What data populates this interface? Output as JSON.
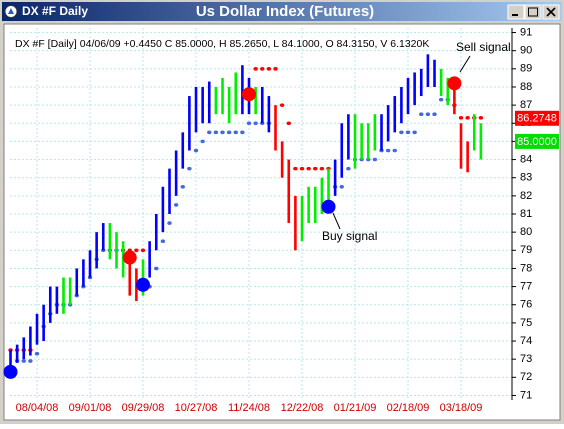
{
  "window_title": "DX #F Daily",
  "chart_data": {
    "type": "ohlc",
    "title": "Us Dollar Index (Futures)",
    "info_line": "DX #F [Daily] 04/06/09 +0.4450 C 85.0000, H 85.2650, L 84.1000, O 84.3150, V 6.1320K",
    "categories": [
      null,
      null,
      null,
      null,
      "08/04/08",
      null,
      null,
      null,
      null,
      null,
      null,
      null,
      "09/01/08",
      null,
      null,
      null,
      null,
      null,
      null,
      null,
      "09/29/08",
      null,
      null,
      null,
      null,
      null,
      null,
      null,
      "10/27/08",
      null,
      null,
      null,
      null,
      null,
      null,
      null,
      "11/24/08",
      null,
      null,
      null,
      null,
      null,
      null,
      null,
      "12/22/08",
      null,
      null,
      null,
      null,
      null,
      null,
      null,
      "01/21/09",
      null,
      null,
      null,
      null,
      null,
      null,
      null,
      "02/18/09",
      null,
      null,
      null,
      null,
      null,
      null,
      null,
      "03/18/09",
      null,
      null,
      null
    ],
    "high": [
      73.5,
      73.8,
      74.2,
      74.8,
      75.5,
      76,
      77,
      77,
      77.5,
      77.5,
      78,
      78.5,
      79,
      80,
      80.5,
      80.5,
      80,
      79.5,
      78.5,
      78,
      78.5,
      79.5,
      81,
      82.5,
      83.5,
      84.5,
      85.5,
      87.5,
      88,
      88,
      88.3,
      88,
      88.5,
      88,
      88.8,
      89.2,
      88.5,
      88,
      88,
      87.5,
      87,
      85,
      84,
      82,
      82,
      82.5,
      82.5,
      83,
      83.5,
      84,
      86,
      86.5,
      86.5,
      86,
      86,
      86.5,
      86.5,
      87,
      87.5,
      88,
      88.5,
      88.8,
      89,
      89.8,
      89.5,
      89,
      88.5,
      88,
      86,
      85,
      86.5,
      86
    ],
    "low": [
      72.3,
      72.8,
      73,
      73.2,
      73.8,
      74,
      75,
      75.5,
      75.5,
      76,
      76.5,
      77,
      77.5,
      78,
      79,
      78.5,
      78,
      77.5,
      76.5,
      76.2,
      76.5,
      77.5,
      79,
      80,
      81,
      82,
      83.5,
      84.5,
      85.5,
      86,
      86,
      86.5,
      86.5,
      86,
      86.5,
      86.5,
      86.5,
      86.5,
      86,
      85.5,
      84.5,
      83,
      80.5,
      79,
      79.5,
      80.5,
      80.5,
      81,
      81.5,
      82,
      83,
      84,
      83.5,
      84,
      84,
      84.5,
      84.5,
      85,
      85.5,
      86,
      86.5,
      87,
      87.5,
      88,
      88,
      87.5,
      87,
      86.5,
      83.5,
      83.3,
      84.5,
      84
    ],
    "bar_colors": [
      "#0000ff",
      "#0000ff",
      "#0000ff",
      "#0000ff",
      "#0000ff",
      "#0000ff",
      "#0000ff",
      "#0000ff",
      "#00ee00",
      "#00ee00",
      "#0000ff",
      "#0000ff",
      "#0000ff",
      "#0000ff",
      "#0000ff",
      "#00ee00",
      "#00ee00",
      "#00ee00",
      "#ff0000",
      "#ff0000",
      "#00ee00",
      "#0000ff",
      "#0000ff",
      "#0000ff",
      "#0000ff",
      "#0000ff",
      "#0000ff",
      "#0000ff",
      "#0000ff",
      "#0000ff",
      "#0000ff",
      "#00ee00",
      "#00ee00",
      "#00ee00",
      "#00ee00",
      "#0000ff",
      "#0000ff",
      "#00ee00",
      "#0000ff",
      "#0000ff",
      "#ff0000",
      "#ff0000",
      "#ff0000",
      "#ff0000",
      "#00ee00",
      "#00ee00",
      "#00ee00",
      "#00ee00",
      "#00ee00",
      "#0000ff",
      "#0000ff",
      "#0000ff",
      "#00ee00",
      "#00ee00",
      "#00ee00",
      "#00ee00",
      "#0000ff",
      "#0000ff",
      "#0000ff",
      "#0000ff",
      "#0000ff",
      "#0000ff",
      "#0000ff",
      "#0000ff",
      "#0000ff",
      "#00ee00",
      "#00ee00",
      "#ff0000",
      "#ff0000",
      "#ff0000",
      "#00ee00",
      "#00ee00"
    ],
    "stop_series": [
      {
        "color": "#4169e1",
        "values": [
          null,
          72.9,
          72.9,
          72.9,
          73.3,
          74.8,
          75.5,
          76,
          76,
          76,
          76.5,
          77,
          77.5,
          78.5,
          79,
          79,
          79,
          79,
          null,
          null,
          null,
          77,
          78,
          79.5,
          80.5,
          81.5,
          82.5,
          83.5,
          84.5,
          85,
          85.5,
          85.5,
          85.5,
          85.5,
          85.5,
          85.5,
          86,
          86,
          86,
          86,
          null,
          null,
          null,
          null,
          null,
          null,
          null,
          null,
          null,
          82.5,
          82.5,
          83.5,
          84,
          84,
          84,
          84,
          84.5,
          84.5,
          84.5,
          85.5,
          85.5,
          85.5,
          86.5,
          86.5,
          86.5,
          87.3,
          87.3,
          null,
          null,
          null,
          null,
          null
        ]
      },
      {
        "color": "#ff0000",
        "values": [
          73.5,
          73.5,
          73.5,
          73.5,
          null,
          null,
          null,
          null,
          null,
          null,
          null,
          null,
          null,
          null,
          null,
          null,
          null,
          79,
          79,
          79,
          79,
          null,
          null,
          null,
          null,
          null,
          null,
          null,
          null,
          null,
          null,
          null,
          null,
          null,
          null,
          null,
          null,
          89,
          89,
          89,
          89,
          87,
          86,
          83.5,
          83.5,
          83.5,
          83.5,
          83.5,
          83.5,
          null,
          null,
          null,
          null,
          null,
          null,
          null,
          null,
          null,
          null,
          null,
          null,
          null,
          null,
          null,
          null,
          null,
          null,
          87,
          86.3,
          86.3,
          86.3,
          86.3
        ]
      }
    ],
    "signals": {
      "x": [
        0,
        18,
        20,
        36,
        48,
        67
      ],
      "values": [
        72.3,
        78.6,
        77.1,
        87.6,
        81.4,
        88.2
      ],
      "colors": [
        "#0000ff",
        "#ff0000",
        "#0000ff",
        "#ff0000",
        "#0000ff",
        "#ff0000"
      ]
    },
    "annotations": [
      "Sell signal",
      "Buy signal"
    ],
    "price_labels": [
      {
        "value": 86.2748,
        "label": "86.2748",
        "color": "#ff0000"
      },
      {
        "value": 85,
        "label": "85.0000",
        "color": "#00dd00"
      }
    ],
    "ylim": [
      70.75,
      91.25
    ],
    "yticks": [
      71,
      72,
      73,
      74,
      75,
      76,
      77,
      78,
      79,
      80,
      81,
      82,
      83,
      84,
      85,
      86,
      87,
      88,
      89,
      90,
      91
    ],
    "grid": true,
    "xlabel_color": "#cc0000"
  }
}
